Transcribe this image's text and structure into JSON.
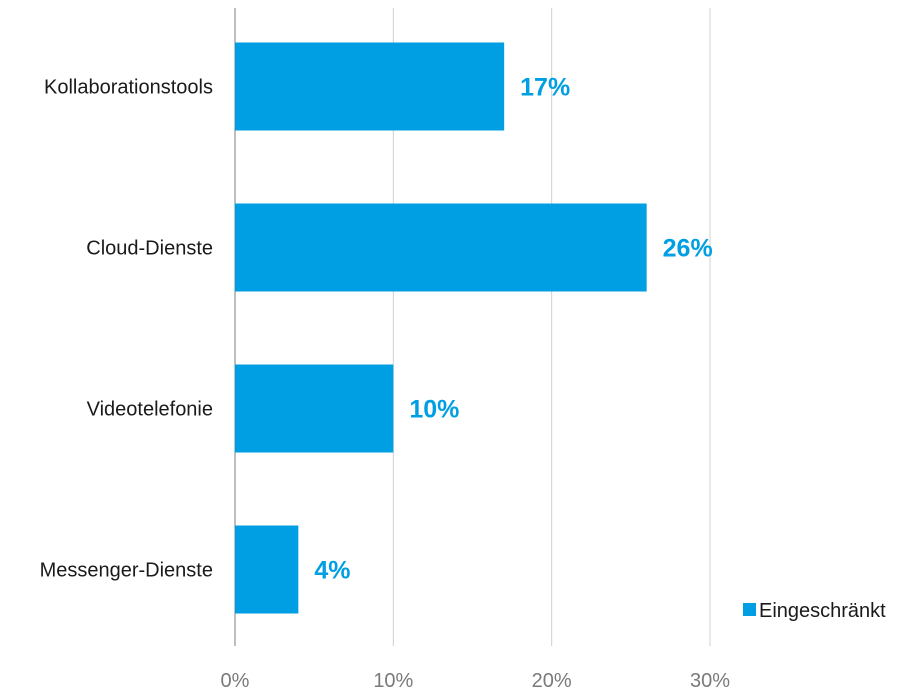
{
  "chart_data": {
    "type": "bar",
    "orientation": "horizontal",
    "categories": [
      "Kollaborationstools",
      "Cloud-Dienste",
      "Videotelefonie",
      "Messenger-Dienste"
    ],
    "series": [
      {
        "name": "Eingeschränkt",
        "values": [
          17,
          26,
          10,
          4
        ],
        "labels": [
          "17%",
          "26%",
          "10%",
          "4%"
        ]
      }
    ],
    "xlim": [
      0,
      30
    ],
    "xticks": [
      0,
      10,
      20,
      30
    ],
    "xtick_labels": [
      "0%",
      "10%",
      "20%",
      "30%"
    ],
    "grid": "vertical",
    "legend": "bottom-right",
    "title": "",
    "xlabel": "",
    "ylabel": "",
    "colors": {
      "bar": "#009fe3",
      "label": "#009fe3",
      "grid": "#d0d0d0",
      "axis": "#7f7f7f"
    }
  }
}
